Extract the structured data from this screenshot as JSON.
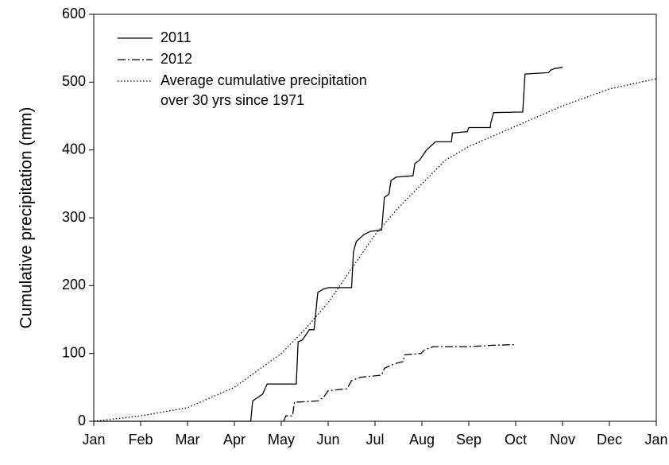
{
  "chart_data": {
    "type": "line",
    "ylabel": "Cumulative precipitation (mm)",
    "xlim": [
      0,
      12
    ],
    "ylim": [
      0,
      600
    ],
    "xticks": [
      {
        "value": 0,
        "label": "Jan"
      },
      {
        "value": 1,
        "label": "Feb"
      },
      {
        "value": 2,
        "label": "Mar"
      },
      {
        "value": 3,
        "label": "Apr"
      },
      {
        "value": 4,
        "label": "May"
      },
      {
        "value": 5,
        "label": "Jun"
      },
      {
        "value": 6,
        "label": "Jul"
      },
      {
        "value": 7,
        "label": "Aug"
      },
      {
        "value": 8,
        "label": "Sep"
      },
      {
        "value": 9,
        "label": "Oct"
      },
      {
        "value": 10,
        "label": "Nov"
      },
      {
        "value": 11,
        "label": "Dec"
      },
      {
        "value": 12,
        "label": "Jan"
      }
    ],
    "yticks": [
      0,
      100,
      200,
      300,
      400,
      500,
      600
    ],
    "legend": "upper left",
    "series": [
      {
        "name": "2011",
        "color": "#000000",
        "linestyle": "solid",
        "x": [
          0,
          3.35,
          3.39,
          3.6,
          3.7,
          4.32,
          4.36,
          4.45,
          4.6,
          4.7,
          4.78,
          4.9,
          5.0,
          5.5,
          5.54,
          5.6,
          5.76,
          5.9,
          6.14,
          6.2,
          6.3,
          6.34,
          6.45,
          6.81,
          6.85,
          6.95,
          7.1,
          7.29,
          7.63,
          7.65,
          7.97,
          8.0,
          8.46,
          8.47,
          8.53,
          9.15,
          9.2,
          9.7,
          9.75,
          9.83,
          10.0
        ],
        "values": [
          0,
          0,
          30,
          40,
          55,
          55,
          117,
          120,
          135,
          135,
          190,
          195,
          197,
          197,
          250,
          265,
          275,
          280,
          282,
          330,
          335,
          355,
          360,
          362,
          380,
          385,
          400,
          412,
          412,
          425,
          427,
          433,
          433,
          440,
          455,
          456,
          512,
          514,
          518,
          520,
          522
        ]
      },
      {
        "name": "2012",
        "color": "#000000",
        "linestyle": "dashdot",
        "x": [
          4.05,
          4.1,
          4.24,
          4.28,
          4.78,
          4.9,
          5.0,
          5.4,
          5.42,
          5.5,
          5.7,
          6.14,
          6.2,
          6.42,
          6.6,
          6.63,
          6.98,
          7.05,
          7.24,
          8.0,
          8.5,
          8.98
        ],
        "values": [
          0,
          8,
          8,
          28,
          30,
          35,
          45,
          48,
          50,
          60,
          65,
          68,
          78,
          85,
          88,
          98,
          100,
          105,
          110,
          110,
          112,
          113
        ]
      },
      {
        "name": "Average cumulative precipitation\nover 30 yrs since 1971",
        "color": "#000000",
        "linestyle": "dotted",
        "x": [
          0,
          1,
          2,
          3,
          4,
          4.5,
          5,
          5.5,
          6,
          6.5,
          7,
          7.5,
          8,
          9,
          10,
          11,
          12
        ],
        "values": [
          0,
          8,
          20,
          50,
          100,
          135,
          175,
          225,
          275,
          315,
          350,
          385,
          405,
          435,
          465,
          490,
          505
        ]
      }
    ]
  }
}
